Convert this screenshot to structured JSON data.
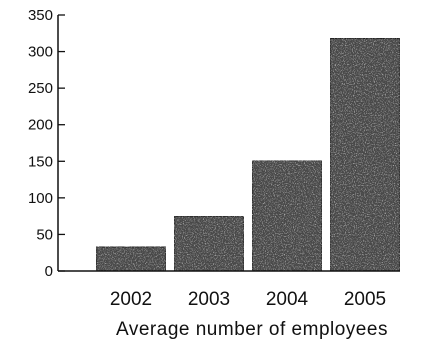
{
  "chart_data": {
    "type": "bar",
    "title": "",
    "xlabel": "Average number of employees",
    "ylabel": "",
    "categories": [
      "2002",
      "2003",
      "2004",
      "2005"
    ],
    "values": [
      33,
      75,
      151,
      318
    ],
    "ylim": [
      0,
      350
    ],
    "yticks": [
      0,
      50,
      100,
      150,
      200,
      250,
      300,
      350
    ],
    "grid": false,
    "bar_color": "#4a4a4a"
  }
}
